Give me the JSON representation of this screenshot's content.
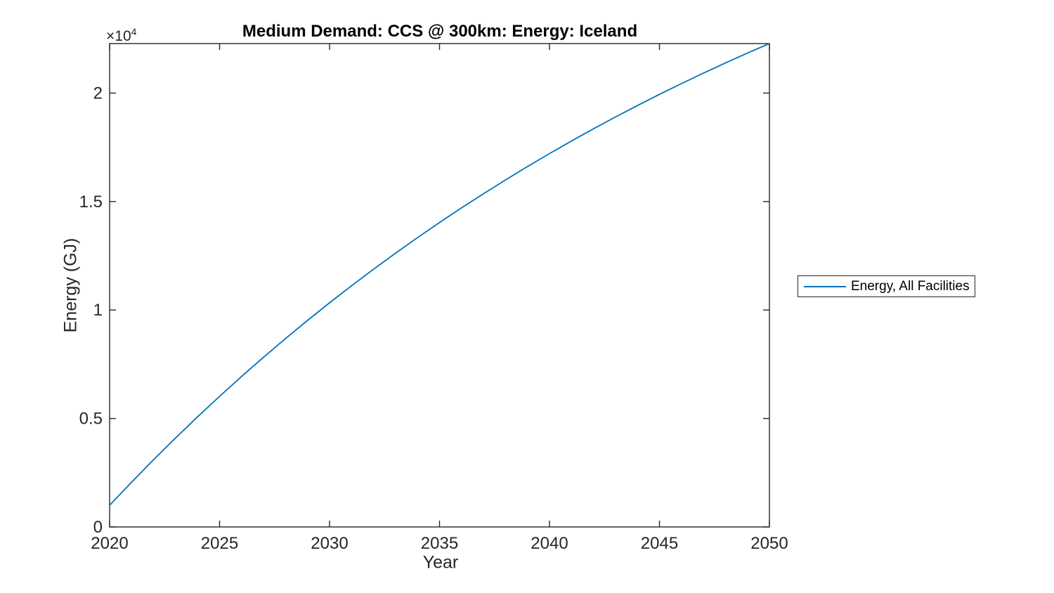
{
  "chart": {
    "title": "Medium Demand: CCS @ 300km: Energy: Iceland",
    "xlabel": "Year",
    "ylabel": "Energy (GJ)",
    "y_multiplier": {
      "base": "×10",
      "exponent": "4"
    },
    "legend": {
      "entries": [
        {
          "label": "Energy, All Facilities",
          "color": "#0072BD"
        }
      ],
      "position": "right-outside"
    },
    "colors": {
      "line": "#0072BD",
      "axis": "#262626",
      "text": "#262626",
      "background": "#ffffff"
    }
  },
  "chart_data": {
    "type": "line",
    "title": "Medium Demand: CCS @ 300km: Energy: Iceland",
    "xlabel": "Year",
    "ylabel": "Energy (GJ)",
    "y_unit_multiplier": "×10^4",
    "grid": false,
    "legend_position": "right-outside",
    "xlim": [
      2020,
      2050
    ],
    "ylim": [
      0,
      22282
    ],
    "xticks": [
      2020,
      2025,
      2030,
      2035,
      2040,
      2045,
      2050
    ],
    "yticks": {
      "values": [
        0,
        5000,
        10000,
        15000,
        20000
      ],
      "labels": [
        "0",
        "0.5",
        "1",
        "1.5",
        "2"
      ]
    },
    "series": [
      {
        "name": "Energy, All Facilities",
        "color": "#0072BD",
        "x": [
          2020,
          2021,
          2022,
          2023,
          2024,
          2025,
          2026,
          2027,
          2028,
          2029,
          2030,
          2031,
          2032,
          2033,
          2034,
          2035,
          2036,
          2037,
          2038,
          2039,
          2040,
          2041,
          2042,
          2043,
          2044,
          2045,
          2046,
          2047,
          2048,
          2049,
          2050
        ],
        "values": [
          1000,
          2066,
          3101,
          4104,
          5077,
          6021,
          6937,
          7824,
          8686,
          9521,
          10332,
          11118,
          11880,
          12619,
          13337,
          14032,
          14707,
          15362,
          15997,
          16613,
          17211,
          17790,
          18353,
          18898,
          19426,
          19939,
          20437,
          20919,
          21387,
          21841,
          22282
        ]
      }
    ]
  }
}
